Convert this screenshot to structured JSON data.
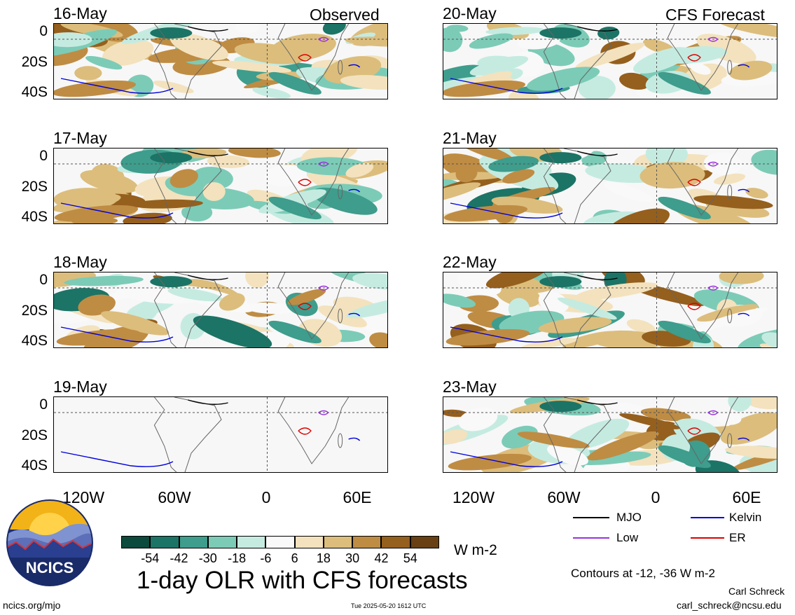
{
  "headers": {
    "observed": "Observed",
    "forecast": "CFS Forecast"
  },
  "panels_left": [
    {
      "date": "16-May"
    },
    {
      "date": "17-May"
    },
    {
      "date": "18-May"
    },
    {
      "date": "19-May"
    }
  ],
  "panels_right": [
    {
      "date": "20-May"
    },
    {
      "date": "21-May"
    },
    {
      "date": "22-May"
    },
    {
      "date": "23-May"
    }
  ],
  "lat_ticks": [
    "0",
    "20S",
    "40S"
  ],
  "lon_ticks": [
    "120W",
    "60W",
    "0",
    "60E"
  ],
  "colorbar": {
    "unit": "W m-2",
    "labels": [
      "-54",
      "-42",
      "-30",
      "-18",
      "-6",
      "6",
      "18",
      "30",
      "42",
      "54"
    ],
    "colors": [
      "#0b4a3c",
      "#1c7466",
      "#3e9d8c",
      "#7ccbb7",
      "#c5ebe1",
      "#f9f9f9",
      "#f3e2bd",
      "#dcbd7c",
      "#bf8c43",
      "#955f1d",
      "#684014"
    ]
  },
  "legend": {
    "items": [
      {
        "label": "MJO",
        "color": "#000000"
      },
      {
        "label": "Kelvin",
        "color": "#0000dd"
      },
      {
        "label": "Low",
        "color": "#9933dd"
      },
      {
        "label": "ER",
        "color": "#dd0000"
      }
    ]
  },
  "contours_note": "Contours at -12, -36 W m-2",
  "title": "1-day OLR with CFS forecasts",
  "logo_text": "NCICS",
  "footer": {
    "url": "ncics.org/mjo",
    "timestamp": "Tue 2025-05-20 1612 UTC",
    "author": "Carl Schreck",
    "email": "carl_schreck@ncsu.edu"
  }
}
